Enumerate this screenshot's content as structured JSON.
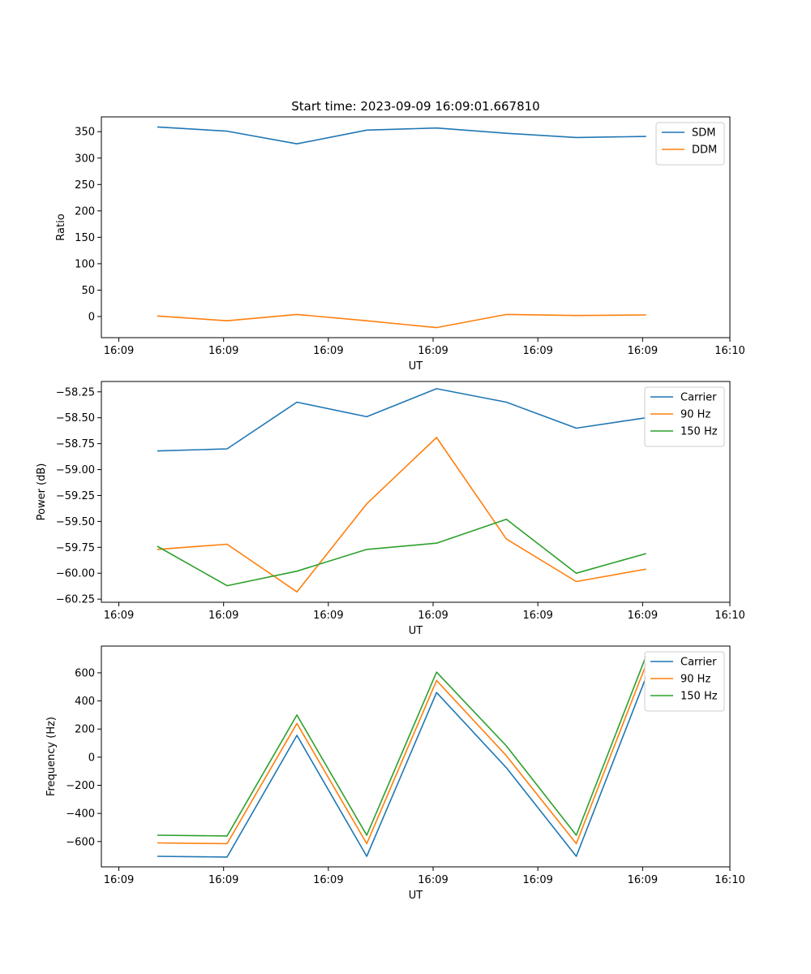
{
  "figure_title": "Start time: 2023-09-09 16:09:01.667810",
  "colors": {
    "blue": "#1f77b4",
    "orange": "#ff7f0e",
    "green": "#2ca02c"
  },
  "chart_data": [
    {
      "type": "line",
      "id": "ratio",
      "title": "Start time: 2023-09-09 16:09:01.667810",
      "xlabel": "UT",
      "ylabel": "Ratio",
      "x": [
        1,
        2,
        3,
        4,
        5,
        6,
        7,
        8
      ],
      "xlim": [
        0.2,
        9.2
      ],
      "xticks": [
        0.45,
        1.95,
        3.45,
        4.95,
        6.45,
        7.95,
        9.2
      ],
      "xtick_labels": [
        "16:09",
        "16:09",
        "16:09",
        "16:09",
        "16:09",
        "16:09",
        "16:10"
      ],
      "ylim": [
        -40,
        378
      ],
      "yticks": [
        0,
        50,
        100,
        150,
        200,
        250,
        300,
        350
      ],
      "ytick_labels": [
        "0",
        "50",
        "100",
        "150",
        "200",
        "250",
        "300",
        "350"
      ],
      "legend": "top-right",
      "series": [
        {
          "name": "SDM",
          "color": "#1f77b4",
          "values": [
            359,
            351,
            327,
            353,
            357,
            347,
            339,
            341
          ]
        },
        {
          "name": "DDM",
          "color": "#ff7f0e",
          "values": [
            1,
            -8,
            4,
            -8,
            -21,
            4,
            2,
            3
          ]
        }
      ]
    },
    {
      "type": "line",
      "id": "power",
      "title": "",
      "xlabel": "UT",
      "ylabel": "Power (dB)",
      "x": [
        1,
        2,
        3,
        4,
        5,
        6,
        7,
        8
      ],
      "xlim": [
        0.2,
        9.2
      ],
      "xticks": [
        0.45,
        1.95,
        3.45,
        4.95,
        6.45,
        7.95,
        9.2
      ],
      "xtick_labels": [
        "16:09",
        "16:09",
        "16:09",
        "16:09",
        "16:09",
        "16:09",
        "16:10"
      ],
      "ylim": [
        -60.28,
        -58.15
      ],
      "yticks": [
        -60.25,
        -60.0,
        -59.75,
        -59.5,
        -59.25,
        -59.0,
        -58.75,
        -58.5,
        -58.25
      ],
      "ytick_labels": [
        "−60.25",
        "−60.00",
        "−59.75",
        "−59.50",
        "−59.25",
        "−59.00",
        "−58.75",
        "−58.50",
        "−58.25"
      ],
      "legend": "top-right",
      "series": [
        {
          "name": "Carrier",
          "color": "#1f77b4",
          "values": [
            -58.82,
            -58.8,
            -58.35,
            -58.49,
            -58.22,
            -58.35,
            -58.6,
            -58.5
          ]
        },
        {
          "name": "90 Hz",
          "color": "#ff7f0e",
          "values": [
            -59.77,
            -59.72,
            -60.18,
            -59.33,
            -58.69,
            -59.67,
            -60.08,
            -59.96
          ]
        },
        {
          "name": "150 Hz",
          "color": "#2ca02c",
          "values": [
            -59.74,
            -60.12,
            -59.98,
            -59.77,
            -59.71,
            -59.48,
            -60.0,
            -59.81
          ]
        }
      ]
    },
    {
      "type": "line",
      "id": "frequency",
      "title": "",
      "xlabel": "UT",
      "ylabel": "Frequency (Hz)",
      "x": [
        1,
        2,
        3,
        4,
        5,
        6,
        7,
        8
      ],
      "xlim": [
        0.2,
        9.2
      ],
      "xticks": [
        0.45,
        1.95,
        3.45,
        4.95,
        6.45,
        7.95,
        9.2
      ],
      "xtick_labels": [
        "16:09",
        "16:09",
        "16:09",
        "16:09",
        "16:09",
        "16:09",
        "16:10"
      ],
      "ylim": [
        -780,
        790
      ],
      "yticks": [
        -600,
        -400,
        -200,
        0,
        200,
        400,
        600
      ],
      "ytick_labels": [
        "−600",
        "−400",
        "−200",
        "0",
        "200",
        "400",
        "600"
      ],
      "legend": "top-right",
      "series": [
        {
          "name": "Carrier",
          "color": "#1f77b4",
          "values": [
            -705,
            -710,
            155,
            -705,
            460,
            -75,
            -705,
            570
          ]
        },
        {
          "name": "90 Hz",
          "color": "#ff7f0e",
          "values": [
            -610,
            -615,
            240,
            -615,
            545,
            10,
            -615,
            660
          ]
        },
        {
          "name": "150 Hz",
          "color": "#2ca02c",
          "values": [
            -555,
            -560,
            300,
            -555,
            605,
            80,
            -555,
            720
          ]
        }
      ]
    }
  ]
}
